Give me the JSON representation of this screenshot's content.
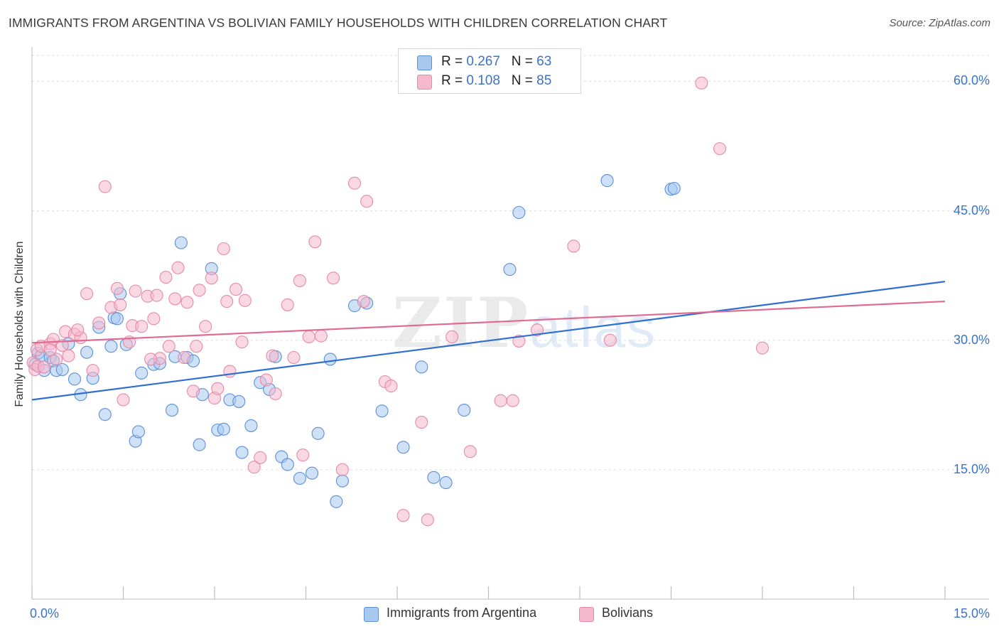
{
  "header": {
    "title": "IMMIGRANTS FROM ARGENTINA VS BOLIVIAN FAMILY HOUSEHOLDS WITH CHILDREN CORRELATION CHART",
    "source": "Source: ZipAtlas.com"
  },
  "watermark": {
    "zip": "ZIP",
    "atlas": "atlas"
  },
  "legend": {
    "rows": [
      {
        "r_label": "R =",
        "r_value": "0.267",
        "n_label": "N =",
        "n_value": "63",
        "color": "#a8c8f0"
      },
      {
        "r_label": "R =",
        "r_value": "0.108",
        "n_label": "N =",
        "n_value": "85",
        "color": "#f6b8cc"
      }
    ]
  },
  "colors": {
    "blue_fill": "#a8c8f0",
    "blue_stroke": "#5b8fd6",
    "blue_line": "#2f6fd0",
    "pink_fill": "#f6b8cc",
    "pink_stroke": "#e58aa8",
    "pink_line": "#e06a92",
    "tick_text": "#3a73c8",
    "grid": "#dcdcdc"
  },
  "chart_data": {
    "type": "scatter",
    "title": "IMMIGRANTS FROM ARGENTINA VS BOLIVIAN FAMILY HOUSEHOLDS WITH CHILDREN CORRELATION CHART",
    "xlabel": "",
    "ylabel": "Family Households with Children",
    "xlim": [
      0,
      15
    ],
    "ylim": [
      0,
      63
    ],
    "x_tick_labels": [
      "0.0%",
      "15.0%"
    ],
    "y_ticks": [
      15,
      30,
      45,
      60
    ],
    "y_tick_labels": [
      "15.0%",
      "30.0%",
      "45.0%",
      "60.0%"
    ],
    "grid": true,
    "legend_position": "top-center",
    "series": [
      {
        "name": "Immigrants from Argentina",
        "color": "#a8c8f0",
        "trend": {
          "x": [
            0,
            15
          ],
          "y": [
            23.1,
            36.8
          ]
        },
        "points": [
          [
            0.05,
            27.2
          ],
          [
            0.1,
            28.5
          ],
          [
            0.15,
            28.2
          ],
          [
            0.2,
            26.5
          ],
          [
            0.3,
            28.0
          ],
          [
            0.35,
            27.6
          ],
          [
            0.4,
            26.5
          ],
          [
            0.5,
            26.6
          ],
          [
            0.6,
            29.6
          ],
          [
            0.7,
            25.5
          ],
          [
            0.8,
            23.7
          ],
          [
            0.9,
            28.6
          ],
          [
            1.0,
            25.6
          ],
          [
            1.1,
            31.5
          ],
          [
            1.2,
            21.4
          ],
          [
            1.3,
            29.3
          ],
          [
            1.35,
            32.6
          ],
          [
            1.45,
            35.4
          ],
          [
            1.55,
            29.5
          ],
          [
            1.7,
            18.3
          ],
          [
            1.75,
            19.4
          ],
          [
            1.8,
            26.2
          ],
          [
            2.0,
            27.2
          ],
          [
            2.1,
            27.3
          ],
          [
            2.3,
            21.9
          ],
          [
            2.35,
            28.1
          ],
          [
            2.45,
            41.3
          ],
          [
            2.55,
            28.0
          ],
          [
            2.65,
            27.6
          ],
          [
            2.75,
            17.9
          ],
          [
            2.8,
            23.7
          ],
          [
            2.95,
            38.3
          ],
          [
            3.05,
            19.6
          ],
          [
            3.15,
            19.7
          ],
          [
            3.25,
            23.1
          ],
          [
            3.4,
            22.9
          ],
          [
            3.45,
            17.0
          ],
          [
            3.6,
            20.1
          ],
          [
            3.75,
            25.1
          ],
          [
            3.9,
            24.3
          ],
          [
            4.0,
            28.1
          ],
          [
            4.1,
            16.5
          ],
          [
            4.2,
            15.6
          ],
          [
            4.4,
            14.0
          ],
          [
            4.6,
            14.6
          ],
          [
            4.7,
            19.2
          ],
          [
            4.9,
            27.8
          ],
          [
            5.0,
            11.3
          ],
          [
            5.1,
            13.7
          ],
          [
            5.3,
            34.0
          ],
          [
            5.5,
            34.3
          ],
          [
            5.75,
            21.8
          ],
          [
            6.1,
            17.6
          ],
          [
            6.4,
            26.9
          ],
          [
            6.6,
            14.1
          ],
          [
            6.8,
            13.5
          ],
          [
            7.1,
            21.9
          ],
          [
            7.85,
            38.2
          ],
          [
            8.0,
            44.8
          ],
          [
            9.45,
            48.5
          ],
          [
            10.5,
            47.5
          ],
          [
            10.55,
            47.6
          ],
          [
            1.4,
            32.5
          ]
        ]
      },
      {
        "name": "Bolivians",
        "color": "#f6b8cc",
        "trend": {
          "x": [
            0,
            15
          ],
          "y": [
            29.7,
            34.5
          ]
        },
        "points": [
          [
            0.02,
            27.4
          ],
          [
            0.05,
            26.6
          ],
          [
            0.08,
            28.9
          ],
          [
            0.1,
            27.0
          ],
          [
            0.15,
            29.3
          ],
          [
            0.2,
            26.9
          ],
          [
            0.3,
            29.6
          ],
          [
            0.35,
            30.1
          ],
          [
            0.4,
            27.8
          ],
          [
            0.5,
            29.4
          ],
          [
            0.55,
            31.0
          ],
          [
            0.6,
            28.2
          ],
          [
            0.7,
            30.7
          ],
          [
            0.8,
            30.3
          ],
          [
            0.75,
            31.2
          ],
          [
            0.9,
            35.4
          ],
          [
            1.0,
            26.5
          ],
          [
            1.1,
            32.0
          ],
          [
            1.2,
            47.8
          ],
          [
            1.3,
            33.8
          ],
          [
            1.4,
            36.0
          ],
          [
            1.45,
            34.1
          ],
          [
            1.5,
            23.1
          ],
          [
            1.6,
            29.8
          ],
          [
            1.65,
            31.7
          ],
          [
            1.7,
            35.7
          ],
          [
            1.8,
            31.6
          ],
          [
            1.9,
            35.1
          ],
          [
            2.0,
            32.5
          ],
          [
            2.05,
            35.2
          ],
          [
            2.1,
            27.9
          ],
          [
            2.2,
            37.3
          ],
          [
            2.25,
            29.3
          ],
          [
            2.35,
            34.8
          ],
          [
            2.4,
            38.4
          ],
          [
            2.5,
            28.0
          ],
          [
            2.55,
            34.4
          ],
          [
            2.65,
            24.1
          ],
          [
            2.7,
            29.3
          ],
          [
            2.75,
            35.8
          ],
          [
            2.85,
            31.6
          ],
          [
            2.95,
            37.2
          ],
          [
            3.0,
            23.3
          ],
          [
            3.05,
            24.4
          ],
          [
            3.15,
            40.6
          ],
          [
            3.25,
            26.4
          ],
          [
            3.35,
            35.9
          ],
          [
            3.45,
            29.8
          ],
          [
            3.5,
            34.6
          ],
          [
            3.65,
            15.3
          ],
          [
            3.75,
            16.4
          ],
          [
            3.85,
            25.4
          ],
          [
            3.95,
            28.2
          ],
          [
            4.0,
            23.8
          ],
          [
            4.2,
            34.1
          ],
          [
            4.3,
            28.0
          ],
          [
            4.4,
            36.9
          ],
          [
            4.45,
            16.7
          ],
          [
            4.55,
            30.4
          ],
          [
            4.65,
            41.4
          ],
          [
            4.75,
            30.5
          ],
          [
            4.95,
            37.2
          ],
          [
            5.1,
            15.0
          ],
          [
            5.3,
            48.2
          ],
          [
            5.45,
            34.5
          ],
          [
            5.5,
            46.1
          ],
          [
            5.8,
            25.2
          ],
          [
            5.9,
            24.7
          ],
          [
            6.1,
            9.7
          ],
          [
            6.4,
            20.5
          ],
          [
            6.5,
            9.2
          ],
          [
            6.9,
            30.4
          ],
          [
            7.2,
            17.1
          ],
          [
            7.7,
            23.0
          ],
          [
            7.9,
            23.0
          ],
          [
            8.0,
            29.9
          ],
          [
            8.3,
            31.2
          ],
          [
            8.9,
            40.9
          ],
          [
            9.5,
            30.0
          ],
          [
            11.0,
            59.8
          ],
          [
            11.3,
            52.2
          ],
          [
            12.0,
            29.1
          ],
          [
            0.3,
            28.9
          ],
          [
            1.95,
            27.8
          ],
          [
            3.2,
            34.5
          ]
        ]
      }
    ]
  }
}
